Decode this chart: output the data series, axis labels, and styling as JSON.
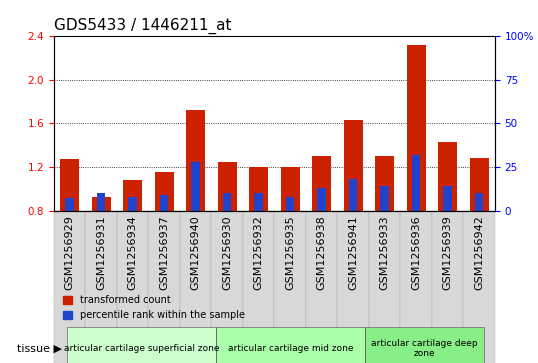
{
  "title": "GDS5433 / 1446211_at",
  "samples": [
    "GSM1256929",
    "GSM1256931",
    "GSM1256934",
    "GSM1256937",
    "GSM1256940",
    "GSM1256930",
    "GSM1256932",
    "GSM1256935",
    "GSM1256938",
    "GSM1256941",
    "GSM1256933",
    "GSM1256936",
    "GSM1256939",
    "GSM1256942"
  ],
  "transformed_count": [
    1.27,
    0.92,
    1.08,
    1.15,
    1.72,
    1.25,
    1.2,
    1.2,
    1.3,
    1.63,
    1.3,
    2.32,
    1.43,
    1.28
  ],
  "percentile_rank": [
    7,
    10,
    8,
    9,
    28,
    10,
    10,
    8,
    13,
    18,
    14,
    32,
    14,
    10
  ],
  "ylim_left": [
    0.8,
    2.4
  ],
  "ylim_right": [
    0,
    100
  ],
  "yticks_left": [
    0.8,
    1.2,
    1.6,
    2.0,
    2.4
  ],
  "yticks_right": [
    0,
    25,
    50,
    75,
    100
  ],
  "ytick_labels_right": [
    "0",
    "25",
    "50",
    "75",
    "100%"
  ],
  "groups": [
    {
      "label": "articular cartilage superficial zone",
      "start": 0,
      "end": 5,
      "color": "#ccffcc"
    },
    {
      "label": "articular cartilage mid zone",
      "start": 5,
      "end": 10,
      "color": "#aaffaa"
    },
    {
      "label": "articular cartilage deep\nzone",
      "start": 10,
      "end": 14,
      "color": "#88ee88"
    }
  ],
  "bar_color_red": "#cc2200",
  "bar_color_blue": "#2244cc",
  "bar_width": 0.6,
  "background_color": "#f0f0f0",
  "tissue_label": "tissue",
  "legend_red": "transformed count",
  "legend_blue": "percentile rank within the sample",
  "grid_color": "#000000",
  "title_fontsize": 11,
  "axis_label_fontsize": 8,
  "tick_fontsize": 7.5
}
